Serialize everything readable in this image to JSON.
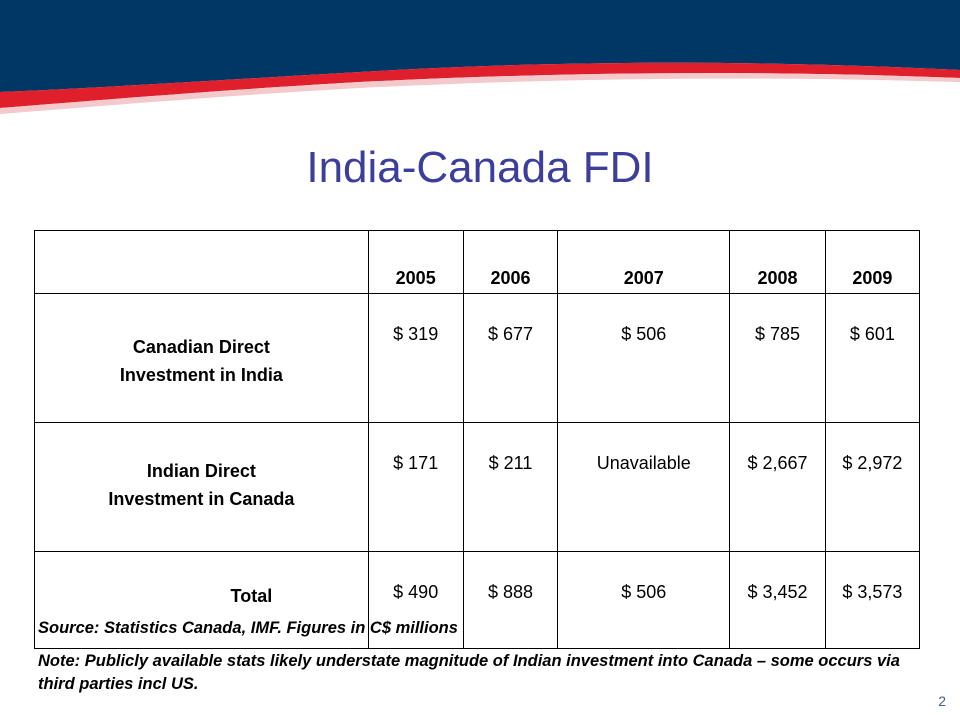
{
  "title": "India-Canada FDI",
  "table": {
    "header": [
      "",
      "2005",
      "2006",
      "2007",
      "2008",
      "2009"
    ],
    "rows": [
      {
        "label_line1": "Canadian Direct",
        "label_line2": "Investment in India",
        "values": [
          "$ 319",
          "$ 677",
          "$ 506",
          "$ 785",
          "$ 601"
        ]
      },
      {
        "label_line1": "Indian Direct",
        "label_line2": "Investment in Canada",
        "values": [
          "$ 171",
          "$ 211",
          "Unavailable",
          "$ 2,667",
          "$ 2,972"
        ]
      },
      {
        "label_line1": "Total",
        "label_line2": "",
        "values": [
          "$ 490",
          "$ 888",
          "$ 506",
          "$ 3,452",
          "$ 3,573"
        ]
      }
    ]
  },
  "source_text": "Source:  Statistics Canada, IMF.  Figures in C$ millions",
  "note_text": "Note:  Publicly available stats likely understate magnitude of Indian investment into Canada – some occurs via third parties incl US.",
  "page_number": "2",
  "colors": {
    "banner_navy": "#003764",
    "banner_red": "#e01f2d",
    "title": "#3b3e9a"
  }
}
